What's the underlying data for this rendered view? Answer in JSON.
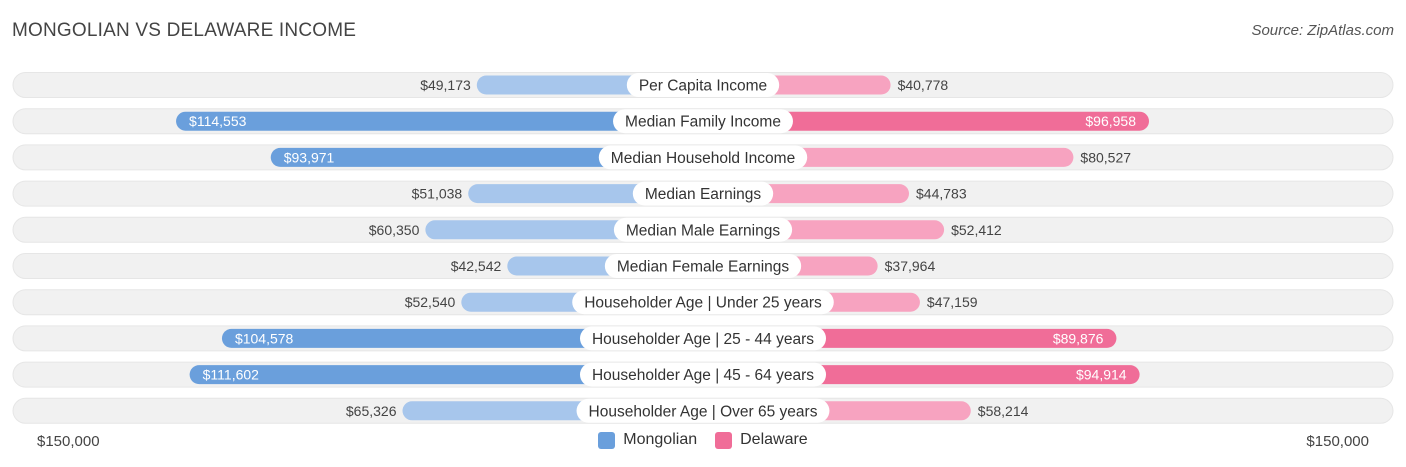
{
  "header": {
    "title": "MONGOLIAN VS DELAWARE INCOME",
    "source": "Source: ZipAtlas.com"
  },
  "colors": {
    "mongolian_dark": "#6a9fdc",
    "mongolian_light": "#a7c6ec",
    "delaware_dark": "#f06d98",
    "delaware_light": "#f7a3c0",
    "track": "#f1f1f1"
  },
  "chart_data": {
    "type": "bar",
    "orientation": "horizontal-diverging",
    "title": "MONGOLIAN VS DELAWARE INCOME",
    "xlim": [
      -150000,
      150000
    ],
    "axis_left_label": "$150,000",
    "axis_right_label": "$150,000",
    "legend": [
      "Mongolian",
      "Delaware"
    ],
    "categories": [
      "Per Capita Income",
      "Median Family Income",
      "Median Household Income",
      "Median Earnings",
      "Median Male Earnings",
      "Median Female Earnings",
      "Householder Age | Under 25 years",
      "Householder Age | 25 - 44 years",
      "Householder Age | 45 - 64 years",
      "Householder Age | Over 65 years"
    ],
    "series": [
      {
        "name": "Mongolian",
        "values": [
          49173,
          114553,
          93971,
          51038,
          60350,
          42542,
          52540,
          104578,
          111602,
          65326
        ],
        "labels": [
          "$49,173",
          "$114,553",
          "$93,971",
          "$51,038",
          "$60,350",
          "$42,542",
          "$52,540",
          "$104,578",
          "$111,602",
          "$65,326"
        ]
      },
      {
        "name": "Delaware",
        "values": [
          40778,
          96958,
          80527,
          44783,
          52412,
          37964,
          47159,
          89876,
          94914,
          58214
        ],
        "labels": [
          "$40,778",
          "$96,958",
          "$80,527",
          "$44,783",
          "$52,412",
          "$37,964",
          "$47,159",
          "$89,876",
          "$94,914",
          "$58,214"
        ]
      }
    ]
  }
}
